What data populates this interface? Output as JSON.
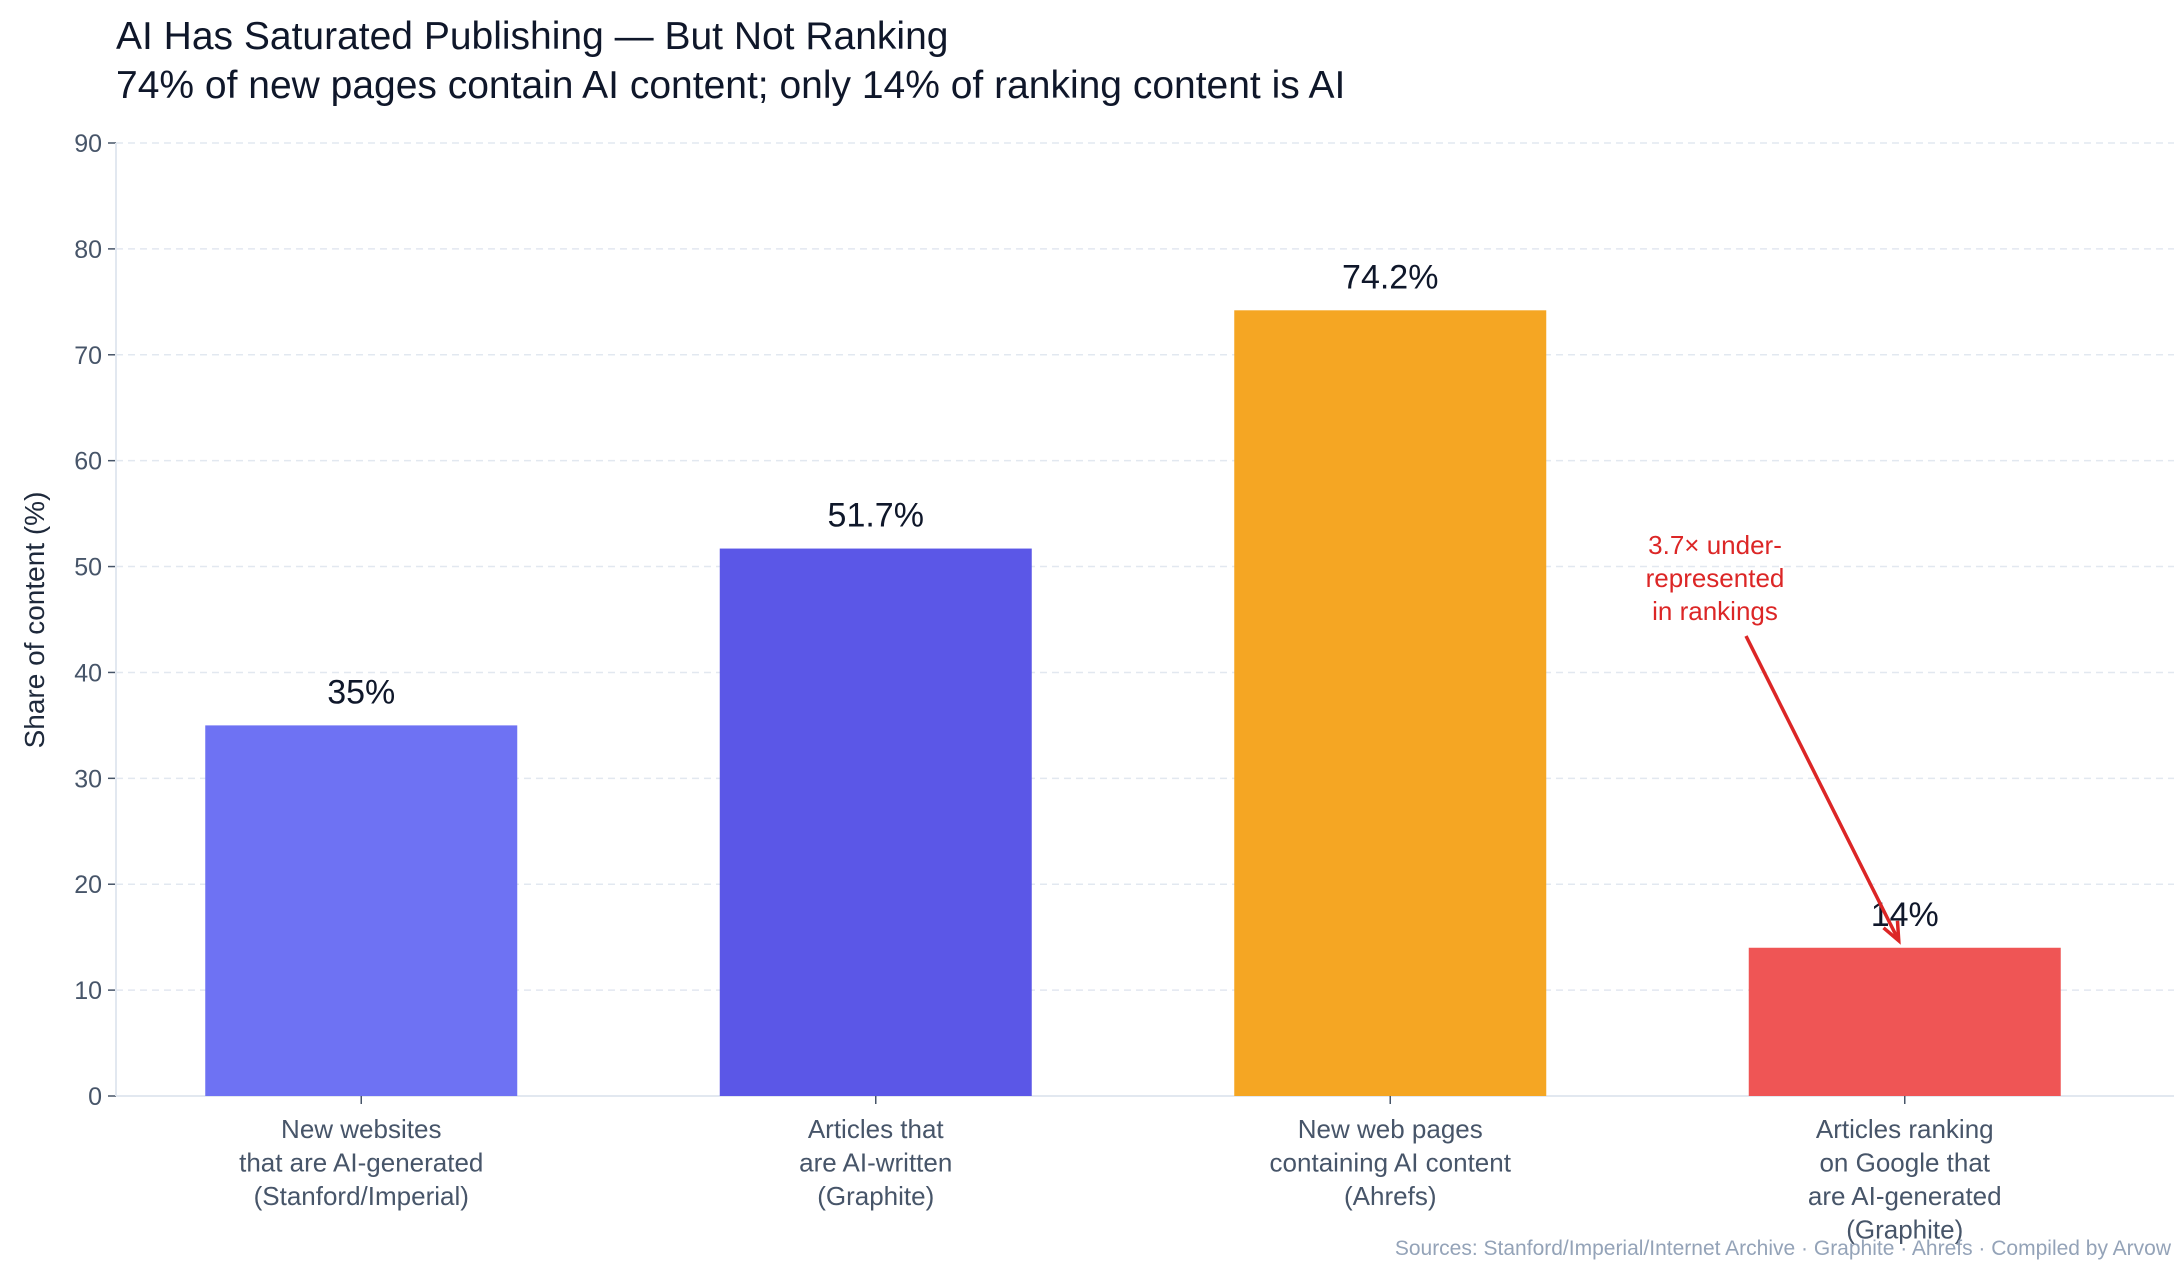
{
  "chart_data": {
    "type": "bar",
    "title": "AI Has Saturated Publishing — But Not Ranking",
    "subtitle": "74% of new pages contain AI content; only 14% of ranking content is AI",
    "xlabel": "",
    "ylabel": "Share of content (%)",
    "ylim": [
      0,
      90
    ],
    "yticks": [
      0,
      10,
      20,
      30,
      40,
      50,
      60,
      70,
      80,
      90
    ],
    "grid": true,
    "categories": [
      [
        "New websites",
        "that are AI-generated",
        "(Stanford/Imperial)"
      ],
      [
        "Articles that",
        "are AI-written",
        "(Graphite)"
      ],
      [
        "New web pages",
        "containing AI content",
        "(Ahrefs)"
      ],
      [
        "Articles ranking",
        "on Google that",
        "are AI-generated",
        "(Graphite)"
      ]
    ],
    "values": [
      35,
      51.7,
      74.2,
      14
    ],
    "value_labels": [
      "35%",
      "51.7%",
      "74.2%",
      "14%"
    ],
    "colors": [
      "#6E72F3",
      "#5B57E7",
      "#F5A623",
      "#EF5555"
    ],
    "annotation": {
      "lines": [
        "3.7× under-",
        "represented",
        "in rankings"
      ],
      "color": "#DC2626",
      "points_to_category": 3
    },
    "source": "Sources: Stanford/Imperial/Internet Archive · Graphite · Ahrefs · Compiled by Arvow"
  }
}
